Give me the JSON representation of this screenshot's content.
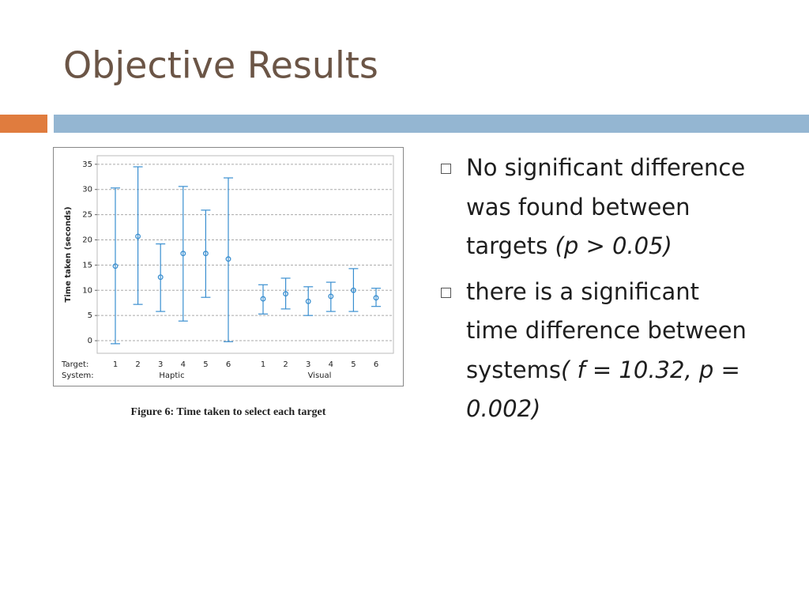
{
  "slide": {
    "title": "Objective Results",
    "bullets": [
      {
        "text": "No significant difference was found between targets ",
        "emphasis": "(p > 0.05)"
      },
      {
        "text": "there is a significant time difference between systems",
        "emphasis": "( f = 10.32, p = 0.002)"
      }
    ],
    "caption": "Figure 6: Time taken to select each target"
  },
  "chart_data": {
    "type": "errorbar",
    "y_label": "Time taken (seconds)",
    "row_labels": [
      "Target:",
      "System:"
    ],
    "series": [
      {
        "name": "Haptic",
        "color": "#3a8fd0",
        "categories": [
          "1",
          "2",
          "3",
          "4",
          "5",
          "6"
        ],
        "values": [
          14.8,
          20.7,
          12.6,
          17.3,
          17.3,
          16.2
        ],
        "upper": [
          30.3,
          34.5,
          19.2,
          30.6,
          25.9,
          32.3
        ],
        "lower": [
          -0.6,
          7.2,
          5.8,
          3.9,
          8.6,
          -0.2
        ]
      },
      {
        "name": "Visual",
        "color": "#3a8fd0",
        "categories": [
          "1",
          "2",
          "3",
          "4",
          "5",
          "6"
        ],
        "values": [
          8.3,
          9.3,
          7.8,
          8.8,
          10.0,
          8.5
        ],
        "upper": [
          11.1,
          12.4,
          10.7,
          11.6,
          14.3,
          10.4
        ],
        "lower": [
          5.3,
          6.3,
          5.0,
          5.8,
          5.8,
          6.8
        ]
      }
    ],
    "ylim": [
      -2.5,
      36.7
    ],
    "yticks": [
      0,
      5,
      10,
      15,
      20,
      25,
      30,
      35
    ],
    "grid": true
  }
}
